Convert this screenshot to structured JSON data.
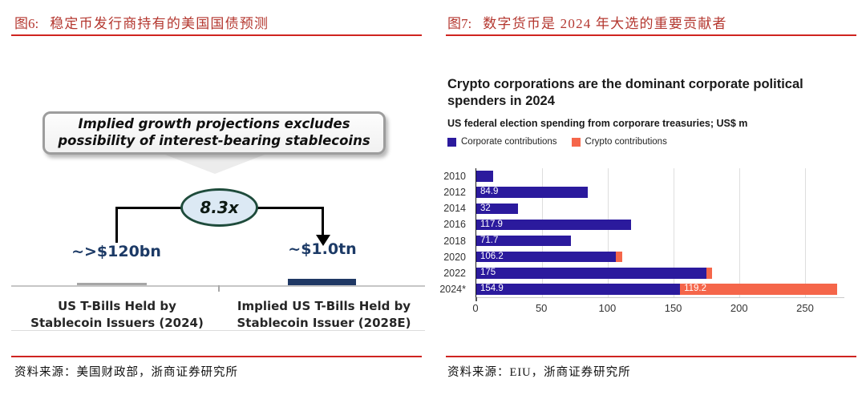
{
  "figures": {
    "fig6": {
      "label": "图6:",
      "title": "稳定币发行商持有的美国国债预测",
      "callout_text": "Implied growth projections excludes possibility of interest-bearing stablecoins",
      "multiplier": "8.3x",
      "start_value": "~>$120bn",
      "end_value": "~$1.0tn",
      "start_axis_label": "US T-Bills Held by\nStablecoin Issuers (2024)",
      "end_axis_label": "Implied US T-Bills Held by\nStablecoin Issuer (2028E)",
      "source": "资料来源：美国财政部，浙商证券研究所"
    },
    "fig7": {
      "label": "图7:",
      "title": "数字货币是 2024 年大选的重要贡献者",
      "source": "资料来源：EIU，浙商证券研究所"
    }
  },
  "chart_data": [
    {
      "figure": "fig6",
      "type": "bar",
      "subtype": "annotated-growth-diagram",
      "categories": [
        "US T-Bills Held by Stablecoin Issuers (2024)",
        "Implied US T-Bills Held by Stablecoin Issuer (2028E)"
      ],
      "values_usd_bn": [
        120,
        1000
      ],
      "value_labels": [
        "~>$120bn",
        "~$1.0tn"
      ],
      "growth_multiple": "8.3x",
      "annotation": "Implied growth projections excludes possibility of interest-bearing stablecoins"
    },
    {
      "figure": "fig7",
      "type": "bar",
      "orientation": "horizontal",
      "title": "Crypto corporations are the dominant corporate political spenders in 2024",
      "subtitle": "US federal election spending from corporare treasuries; US$ m",
      "categories": [
        "2010",
        "2012",
        "2014",
        "2016",
        "2018",
        "2020",
        "2022",
        "2024*"
      ],
      "series": [
        {
          "name": "Corporate contributions",
          "color": "#2b1a9d",
          "values": [
            13,
            84.9,
            32,
            117.9,
            71.7,
            106.2,
            175,
            154.9
          ],
          "labels": [
            "",
            "84.9",
            "32",
            "117.9",
            "71.7",
            "106.2",
            "175",
            "154.9"
          ]
        },
        {
          "name": "Crypto contributions",
          "color": "#f5664a",
          "values": [
            0,
            0,
            0,
            0,
            0,
            5,
            4.5,
            119.2
          ],
          "labels": [
            "",
            "",
            "",
            "",
            "",
            "",
            "",
            "119.2"
          ]
        }
      ],
      "x_ticks": [
        0,
        50,
        100,
        150,
        200,
        250
      ],
      "xlim": [
        0,
        278
      ],
      "grid": "vertical",
      "legend_position": "top"
    }
  ],
  "colors": {
    "heading_red": "#b4372f",
    "rule_red": "#cf2420",
    "navy_text": "#1c3a66",
    "navy_bar": "#1f3864",
    "gray_bar": "#a6a6a6",
    "corporate_blue": "#2b1a9d",
    "crypto_orange": "#f5664a"
  }
}
